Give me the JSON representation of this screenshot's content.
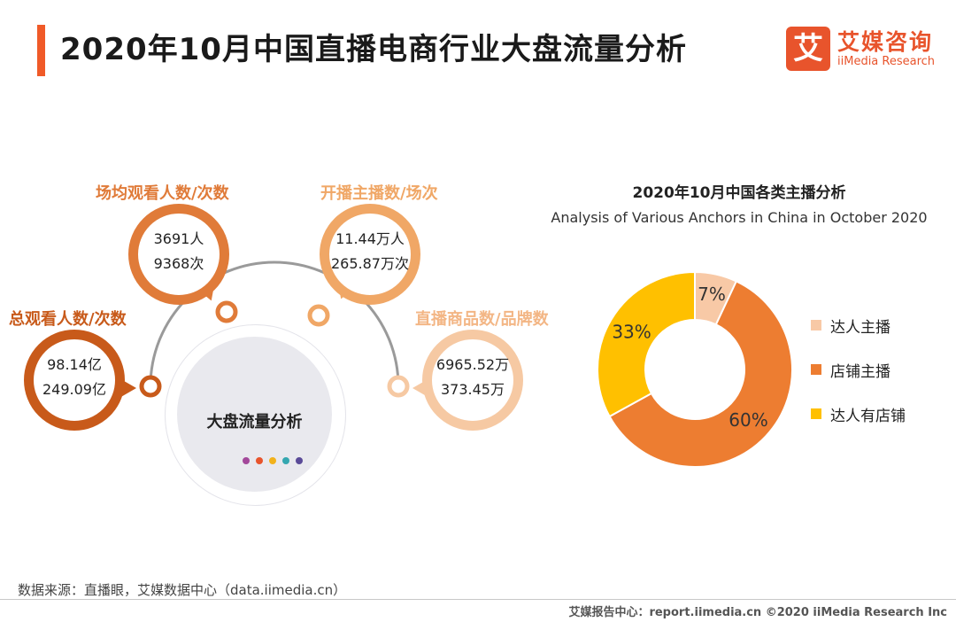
{
  "header": {
    "title": "2020年10月中国直播电商行业大盘流量分析",
    "logo_mark": "艾",
    "logo_cn": "艾媒咨询",
    "logo_en": "iiMedia Research"
  },
  "traffic": {
    "center_label": "大盘流量分析",
    "dot_colors": [
      "#a3489a",
      "#e8542c",
      "#f2b21b",
      "#35a7b0",
      "#5a4a98"
    ],
    "bubbles": [
      {
        "title": "总观看人数/次数",
        "line1": "98.14亿",
        "line2": "249.09亿",
        "color": "#c85a1a",
        "title_color": "#c85a1a"
      },
      {
        "title": "场均观看人数/次数",
        "line1": "3691人",
        "line2": "9368次",
        "color": "#e07b39",
        "title_color": "#e07b39"
      },
      {
        "title": "开播主播数/场次",
        "line1": "11.44万人",
        "line2": "265.87万次",
        "color": "#f0a766",
        "title_color": "#f0a766"
      },
      {
        "title": "直播商品数/品牌数",
        "line1": "6965.52万",
        "line2": "373.45万",
        "color": "#f6c9a3",
        "title_color": "#f3b685"
      }
    ]
  },
  "chart_data": {
    "type": "pie",
    "title": "2020年10月中国各类主播分析",
    "subtitle": "Analysis of Various Anchors in China in October 2020",
    "categories": [
      "达人主播",
      "店铺主播",
      "达人有店铺"
    ],
    "values": [
      7,
      60,
      33
    ],
    "labels": [
      "7%",
      "60%",
      "33%"
    ],
    "colors": [
      "#f8c9a6",
      "#ed7d31",
      "#ffc000"
    ],
    "donut": true
  },
  "footer": {
    "source": "数据来源：直播眼，艾媒数据中心（data.iimedia.cn）",
    "right": "艾媒报告中心：report.iimedia.cn  ©2020  iiMedia Research  Inc"
  }
}
